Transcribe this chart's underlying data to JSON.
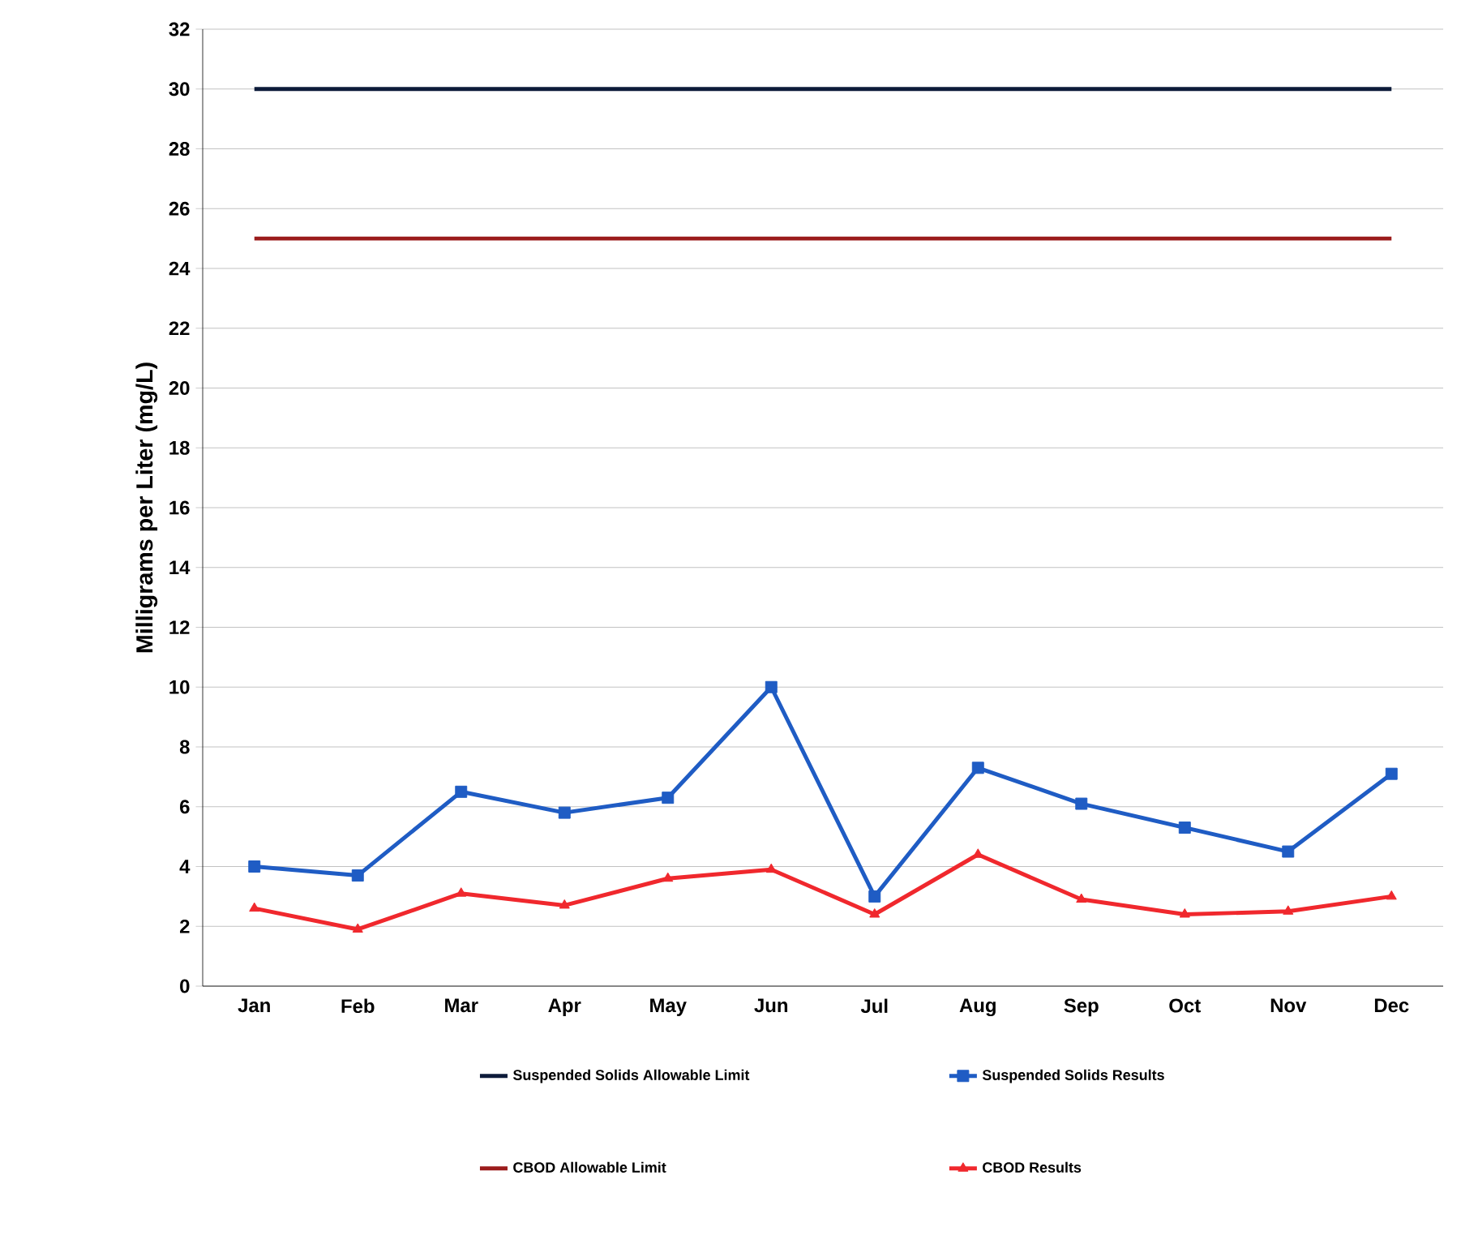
{
  "chart_data": {
    "type": "line",
    "ylabel": "Milligrams per Liter (mg/L)",
    "categories": [
      "Jan",
      "Feb",
      "Mar",
      "Apr",
      "May",
      "Jun",
      "Jul",
      "Aug",
      "Sep",
      "Oct",
      "Nov",
      "Dec"
    ],
    "ylim": [
      0,
      32
    ],
    "yticks": [
      0,
      2,
      4,
      6,
      8,
      10,
      12,
      14,
      16,
      18,
      20,
      22,
      24,
      26,
      28,
      30,
      32
    ],
    "grid": "y",
    "legend": "bottom",
    "series": [
      {
        "name": "Suspended Solids Allowable Limit",
        "color": "#0d1b3a",
        "marker": "none",
        "values": [
          30,
          30,
          30,
          30,
          30,
          30,
          30,
          30,
          30,
          30,
          30,
          30
        ]
      },
      {
        "name": "Suspended Solids Results",
        "color": "#1f5cc4",
        "marker": "square",
        "values": [
          4.0,
          3.7,
          6.5,
          5.8,
          6.3,
          10.0,
          3.0,
          7.3,
          6.1,
          5.3,
          4.5,
          7.1
        ]
      },
      {
        "name": "CBOD Allowable Limit",
        "color": "#9b1c1c",
        "marker": "none",
        "values": [
          25,
          25,
          25,
          25,
          25,
          25,
          25,
          25,
          25,
          25,
          25,
          25
        ]
      },
      {
        "name": "CBOD Results",
        "color": "#f0282d",
        "marker": "triangle",
        "values": [
          2.6,
          1.9,
          3.1,
          2.7,
          3.6,
          3.9,
          2.4,
          4.4,
          2.9,
          2.4,
          2.5,
          3.0
        ]
      }
    ]
  }
}
